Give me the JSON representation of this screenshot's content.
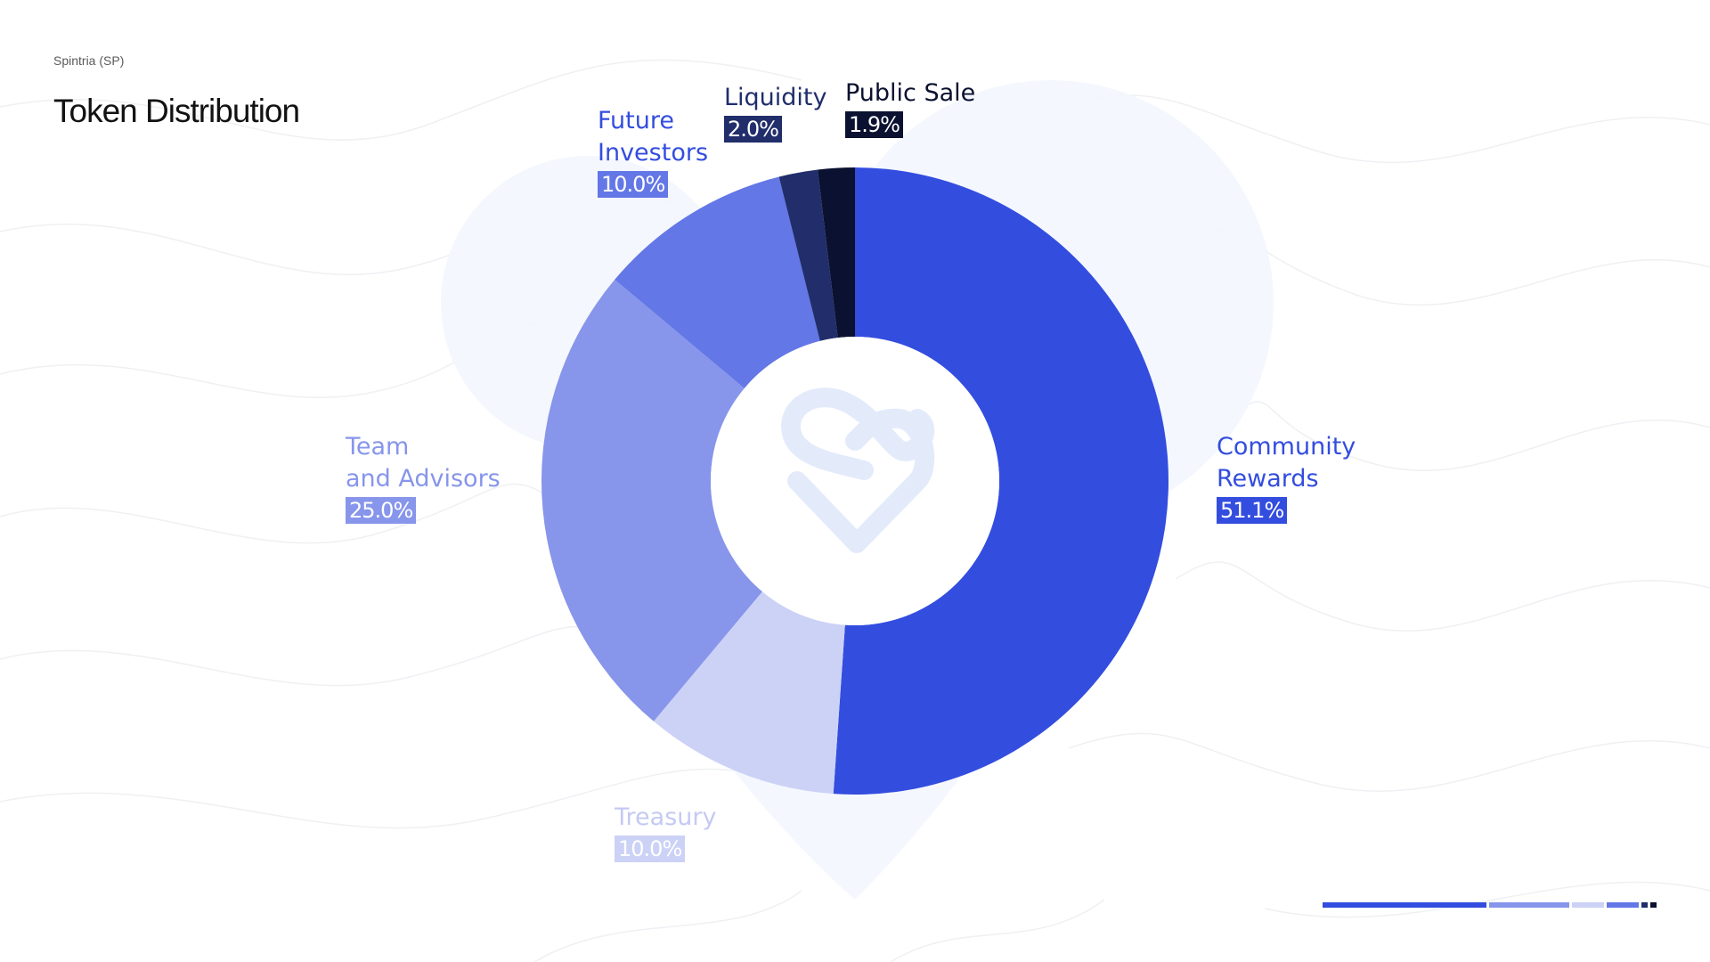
{
  "header": {
    "subtitle": "Spintria (SP)",
    "title": "Token Distribution"
  },
  "chart_data": {
    "type": "pie",
    "title": "Token Distribution",
    "slices": [
      {
        "label": "Community\nRewards",
        "value": 51.1,
        "percent_label": "51.1%",
        "color": "#334ddf",
        "text_color": "#334ddf"
      },
      {
        "label": "Treasury",
        "value": 10.0,
        "percent_label": "10.0%",
        "color": "#ccd2f6",
        "text_color": "#c4caf2"
      },
      {
        "label": "Team\nand Advisors",
        "value": 25.0,
        "percent_label": "25.0%",
        "color": "#8795eb",
        "text_color": "#8795eb"
      },
      {
        "label": "Future\nInvestors",
        "value": 10.0,
        "percent_label": "10.0%",
        "color": "#6377e6",
        "text_color": "#334ddf"
      },
      {
        "label": "Liquidity",
        "value": 2.0,
        "percent_label": "2.0%",
        "color": "#212e6b",
        "text_color": "#212e6b"
      },
      {
        "label": "Public Sale",
        "value": 1.9,
        "percent_label": "1.9%",
        "color": "#0b1130",
        "text_color": "#0b1130"
      }
    ]
  },
  "legend_bar": {
    "colors": [
      "#334ddf",
      "#8795eb",
      "#ccd2f6",
      "#6377e6",
      "#212e6b",
      "#0b1130"
    ]
  },
  "center_logo": {
    "icon": "spintria-logo-icon",
    "color": "#e3ebfb"
  }
}
